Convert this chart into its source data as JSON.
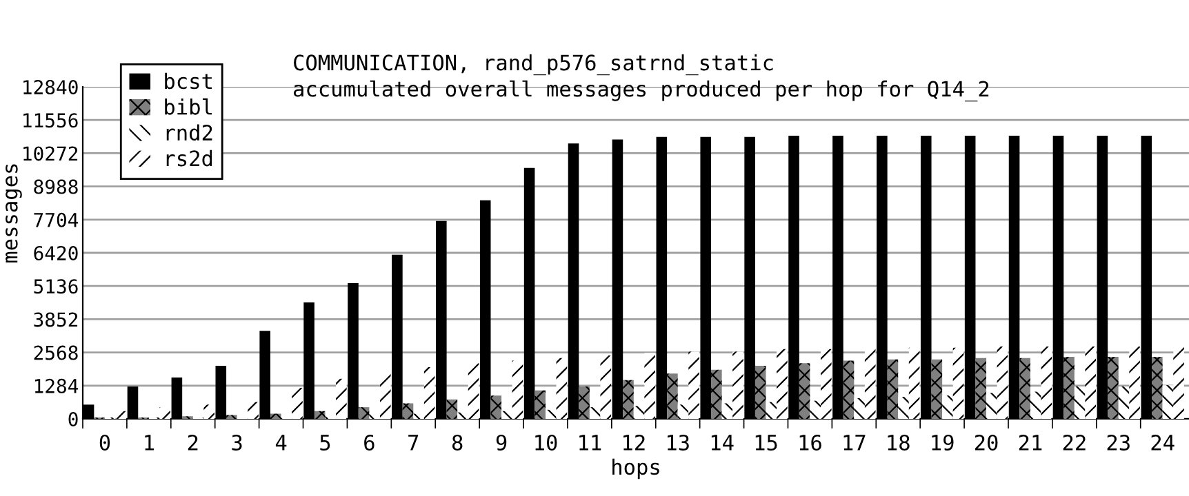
{
  "chart_data": {
    "type": "bar",
    "title": "COMMUNICATION, rand_p576_satrnd_static",
    "subtitle": "accumulated overall messages produced per hop for Q14_2",
    "xlabel": "hops",
    "ylabel": "messages",
    "categories": [
      "0",
      "1",
      "2",
      "3",
      "4",
      "5",
      "6",
      "7",
      "8",
      "9",
      "10",
      "11",
      "12",
      "13",
      "14",
      "15",
      "16",
      "17",
      "18",
      "19",
      "20",
      "21",
      "22",
      "23",
      "24"
    ],
    "series": [
      {
        "name": "bcst",
        "color": "#000000",
        "values": [
          550,
          1250,
          1600,
          2050,
          3400,
          4500,
          5250,
          6350,
          7650,
          8450,
          9700,
          10650,
          10800,
          10900,
          10900,
          10900,
          10950,
          10950,
          10950,
          10950,
          10950,
          10950,
          10950,
          10950,
          10950
        ]
      },
      {
        "name": "bibl",
        "color": "#808080",
        "values": [
          50,
          50,
          100,
          150,
          200,
          300,
          450,
          600,
          750,
          900,
          1100,
          1250,
          1500,
          1750,
          1900,
          2050,
          2150,
          2250,
          2300,
          2300,
          2350,
          2350,
          2400,
          2400,
          2400
        ]
      },
      {
        "name": "rnd2",
        "color": "#ffffff",
        "values": [
          50,
          50,
          50,
          50,
          100,
          100,
          200,
          200,
          250,
          300,
          350,
          450,
          500,
          550,
          600,
          650,
          700,
          800,
          850,
          900,
          1000,
          1050,
          1250,
          1250,
          1300
        ]
      },
      {
        "name": "rs2d",
        "color": "#ffffff",
        "values": [
          300,
          450,
          550,
          650,
          1200,
          1550,
          1750,
          2000,
          2150,
          2250,
          2350,
          2450,
          2550,
          2600,
          2600,
          2700,
          2700,
          2750,
          2750,
          2750,
          2800,
          2800,
          2800,
          2800,
          2800
        ]
      }
    ],
    "ylim": [
      0,
      12840
    ],
    "yticks": [
      0,
      1284,
      2568,
      3852,
      5136,
      6420,
      7704,
      8988,
      10272,
      11556,
      12840
    ],
    "grid": "y",
    "legend": "top left"
  }
}
